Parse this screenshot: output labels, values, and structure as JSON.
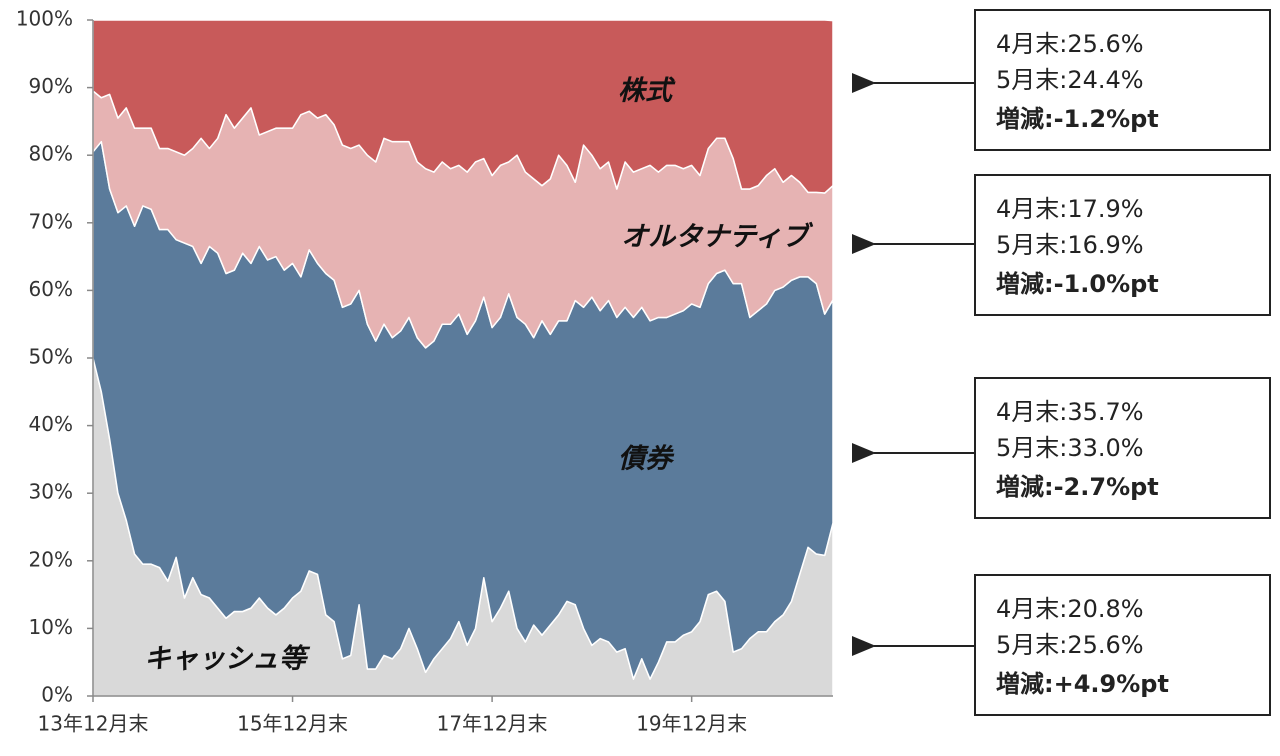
{
  "chart_data": {
    "type": "stacked_area",
    "categories": [
      "13年12月末",
      null,
      null,
      null,
      null,
      null,
      null,
      null,
      null,
      null,
      null,
      null,
      null,
      null,
      null,
      null,
      null,
      null,
      null,
      null,
      null,
      null,
      null,
      null,
      "15年12月末",
      null,
      null,
      null,
      null,
      null,
      null,
      null,
      null,
      null,
      null,
      null,
      null,
      null,
      null,
      null,
      null,
      null,
      null,
      null,
      null,
      null,
      null,
      null,
      "17年12月末",
      null,
      null,
      null,
      null,
      null,
      null,
      null,
      null,
      null,
      null,
      null,
      null,
      null,
      null,
      null,
      null,
      null,
      null,
      null,
      null,
      null,
      null,
      null,
      "19年12月末",
      null,
      null,
      null,
      null,
      null,
      null,
      null,
      null,
      null,
      null,
      null,
      null,
      null,
      null,
      null,
      null,
      null
    ],
    "ylim": [
      0,
      100
    ],
    "yticks": [
      {
        "value": 0,
        "label": "0%"
      },
      {
        "value": 10,
        "label": "10%"
      },
      {
        "value": 20,
        "label": "20%"
      },
      {
        "value": 30,
        "label": "30%"
      },
      {
        "value": 40,
        "label": "40%"
      },
      {
        "value": 50,
        "label": "50%"
      },
      {
        "value": 60,
        "label": "60%"
      },
      {
        "value": 70,
        "label": "70%"
      },
      {
        "value": 80,
        "label": "80%"
      },
      {
        "value": 90,
        "label": "90%"
      },
      {
        "value": 100,
        "label": "100%"
      }
    ],
    "series": [
      {
        "name": "キャッシュ等",
        "color": "#d9d9d9",
        "note": [
          "4月末:20.8%",
          "5月末:25.6%",
          "増減:+4.9%pt"
        ],
        "values": [
          50,
          45,
          38,
          30,
          26,
          21,
          19.5,
          19.5,
          19,
          17,
          20.5,
          14.5,
          17.5,
          15,
          14.5,
          13,
          11.5,
          12.5,
          12.5,
          13,
          14.5,
          13,
          12,
          13,
          14.5,
          15.5,
          18.5,
          18,
          12,
          11,
          5.5,
          6,
          13.5,
          4,
          4,
          6,
          5.5,
          7,
          10,
          7,
          3.5,
          5.5,
          7,
          8.5,
          11,
          7.5,
          10,
          17.5,
          11,
          13,
          15.5,
          10,
          8,
          10.5,
          9,
          10.5,
          12,
          14,
          13.5,
          10,
          7.5,
          8.5,
          8,
          6.5,
          7,
          2.5,
          5.5,
          2.5,
          5,
          8,
          8,
          9,
          9.5,
          11,
          15,
          15.5,
          14,
          6.5,
          7,
          8.5,
          9.5,
          9.5,
          11,
          12,
          14,
          18,
          22,
          21,
          20.8,
          25.6
        ]
      },
      {
        "name": "債券",
        "color": "#5b7b9b",
        "note": [
          "4月末:35.7%",
          "5月末:33.0%",
          "増減:-2.7%pt"
        ],
        "values": [
          30.5,
          37,
          37,
          41.5,
          46.5,
          48.5,
          53,
          52.5,
          50,
          52,
          47,
          52.5,
          49,
          49,
          52,
          52.5,
          51,
          50.5,
          53,
          51,
          52,
          51.5,
          53,
          50,
          49.5,
          46.5,
          47.5,
          46,
          50.5,
          50.5,
          52,
          52,
          46.5,
          51,
          48.5,
          49,
          47.5,
          47,
          46,
          46,
          48,
          47,
          48,
          46.5,
          45.5,
          46,
          45.5,
          41.5,
          43.5,
          43,
          44,
          46,
          47,
          42.5,
          46.5,
          43,
          43.5,
          41.5,
          45,
          47.5,
          51.5,
          48.5,
          50.5,
          49.5,
          50.5,
          53.5,
          52,
          53,
          51,
          48,
          48.5,
          48,
          48.5,
          46.5,
          46,
          47,
          49,
          54.5,
          54,
          47.5,
          47.5,
          48.5,
          49,
          48.5,
          47.5,
          44,
          40,
          40,
          35.7,
          33.0
        ]
      },
      {
        "name": "オルタナティブ",
        "color": "#e6b3b3",
        "note": [
          "4月末:17.9%",
          "5月末:16.9%",
          "増減:-1.0%pt"
        ],
        "values": [
          9,
          6.5,
          14,
          14,
          14.5,
          14.5,
          11.5,
          12,
          12,
          12,
          13,
          13,
          14.5,
          18.5,
          14.5,
          17,
          23.5,
          21,
          20,
          23,
          16.5,
          19,
          19,
          21,
          20,
          24,
          20.5,
          21.5,
          23.5,
          23,
          24,
          23,
          21.5,
          25,
          26.5,
          27.5,
          29,
          28,
          26,
          26,
          26.5,
          25,
          24,
          23,
          22,
          24,
          23.5,
          20.5,
          22.5,
          22.5,
          19.5,
          24,
          22.5,
          23.5,
          20,
          23,
          24.5,
          23,
          17.5,
          24,
          21,
          21,
          20.5,
          19,
          21.5,
          21.5,
          20.5,
          23,
          21.5,
          22.5,
          22,
          21,
          20.5,
          19.5,
          20,
          20,
          19.5,
          18.5,
          14,
          19,
          18.5,
          19,
          18,
          15.5,
          15.5,
          14,
          12.5,
          13.5,
          17.9,
          16.9
        ]
      },
      {
        "name": "株式",
        "color": "#c85a5a",
        "note": [
          "4月末:25.6%",
          "5月末:24.4%",
          "増減:-1.2%pt"
        ],
        "values": [
          10.5,
          11.5,
          11,
          14.5,
          13,
          16,
          16,
          16,
          19,
          19,
          19.5,
          20,
          19,
          17.5,
          19,
          17.5,
          14,
          16,
          14.5,
          13,
          17,
          16.5,
          16,
          16,
          16,
          14,
          13.5,
          14.5,
          14,
          15.5,
          18.5,
          19,
          18.5,
          20,
          21,
          17.5,
          18,
          18,
          18,
          21,
          22,
          22.5,
          21,
          22,
          21.5,
          22.5,
          21,
          20.5,
          23,
          21.5,
          21,
          20,
          22.5,
          23.5,
          24.5,
          23.5,
          20,
          21.5,
          24,
          18.5,
          20,
          22,
          21,
          25,
          21,
          22.5,
          22,
          21.5,
          22.5,
          21.5,
          21.5,
          22,
          21.5,
          23,
          19,
          17.5,
          17.5,
          20.5,
          25,
          25,
          24.5,
          23,
          22,
          24,
          23,
          24,
          25.5,
          25.5,
          25.6,
          24.4
        ]
      }
    ]
  }
}
